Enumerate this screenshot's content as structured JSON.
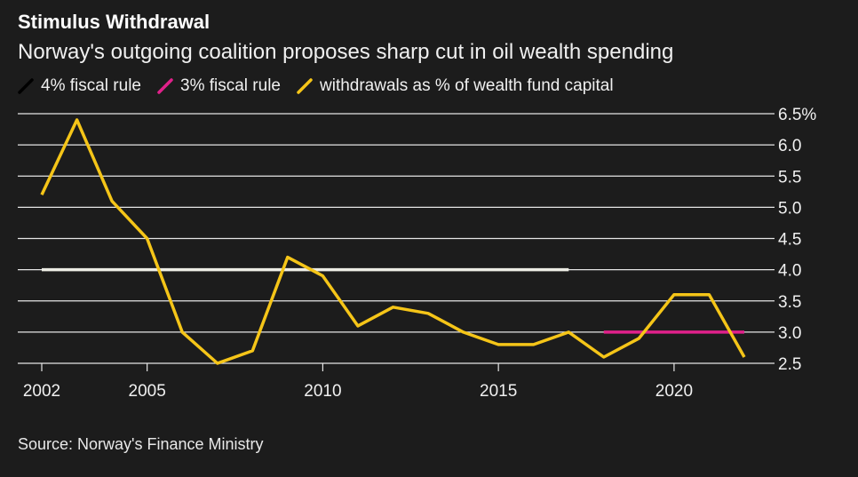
{
  "title": "Stimulus Withdrawal",
  "subtitle": "Norway's outgoing coalition proposes sharp cut in oil wealth spending",
  "source": "Source: Norway's Finance Ministry",
  "legend": [
    {
      "label": "4% fiscal rule",
      "color": "#000000"
    },
    {
      "label": "3% fiscal rule",
      "color": "#e0218a"
    },
    {
      "label": "withdrawals as % of wealth fund capital",
      "color": "#f5c518"
    }
  ],
  "chart_data": {
    "type": "line",
    "xlabel": "",
    "ylabel": "",
    "xlim": [
      2002,
      2022
    ],
    "ylim": [
      2.5,
      6.5
    ],
    "y_ticks": [
      2.5,
      3.0,
      3.5,
      4.0,
      4.5,
      5.0,
      5.5,
      6.0,
      6.5
    ],
    "y_tick_labels": [
      "2.5",
      "3.0",
      "3.5",
      "4.0",
      "4.5",
      "5.0",
      "5.5",
      "6.0",
      "6.5%"
    ],
    "x_ticks": [
      2002,
      2005,
      2010,
      2015,
      2020
    ],
    "x_tick_labels": [
      "2002",
      "2005",
      "2010",
      "2015",
      "2020"
    ],
    "grid": "horizontal",
    "legend_position": "top-left",
    "series": [
      {
        "name": "4% fiscal rule",
        "color": "#ecece4",
        "x": [
          2002,
          2017
        ],
        "values": [
          4.0,
          4.0
        ]
      },
      {
        "name": "3% fiscal rule",
        "color": "#e0218a",
        "x": [
          2018,
          2022
        ],
        "values": [
          3.0,
          3.0
        ]
      },
      {
        "name": "withdrawals as % of wealth fund capital",
        "color": "#f5c518",
        "x": [
          2002,
          2003,
          2004,
          2005,
          2006,
          2007,
          2008,
          2009,
          2010,
          2011,
          2012,
          2013,
          2014,
          2015,
          2016,
          2017,
          2018,
          2019,
          2020,
          2021,
          2022
        ],
        "values": [
          5.2,
          6.4,
          5.1,
          4.5,
          3.0,
          2.5,
          2.7,
          4.2,
          3.9,
          3.1,
          3.4,
          3.3,
          3.0,
          2.8,
          2.8,
          3.0,
          2.6,
          2.9,
          3.6,
          3.6,
          2.6
        ]
      }
    ]
  }
}
